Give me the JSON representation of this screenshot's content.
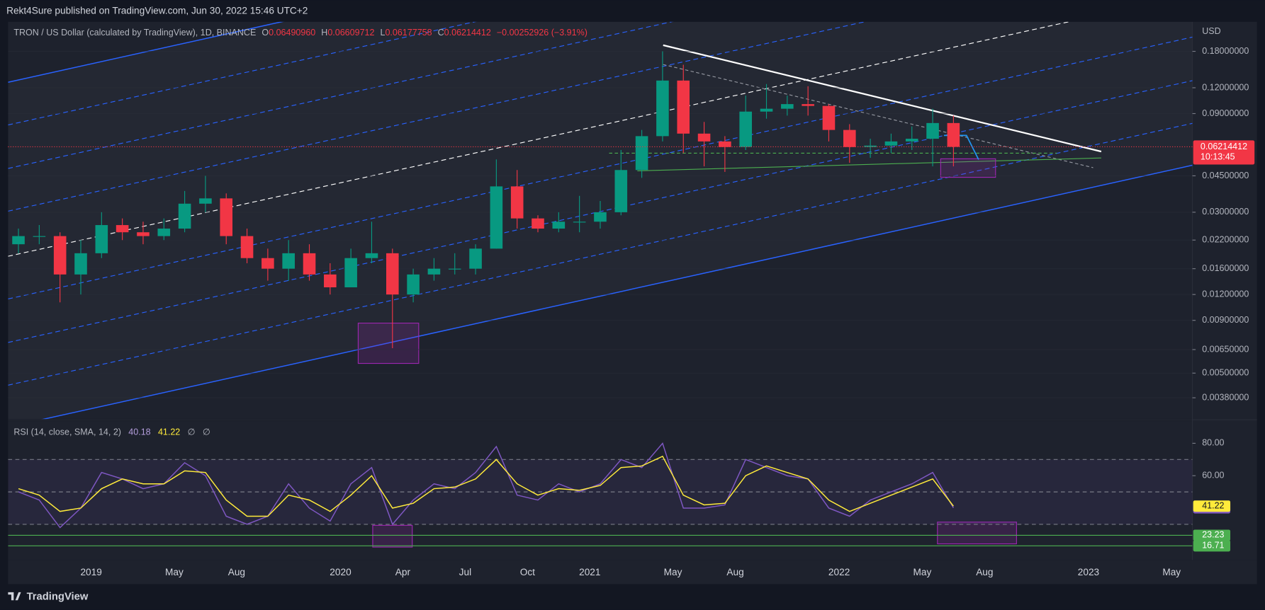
{
  "header": {
    "publisher": "Rekt4Sure published on TradingView.com, Jun 30, 2022 15:46 UTC+2"
  },
  "chart_data": [
    {
      "type": "candlestick",
      "title": "TRON / US Dollar (calculated by TradingView), 1D, BINANCE",
      "legend": [
        {
          "label": "O",
          "value": "0.06490960"
        },
        {
          "label": "H",
          "value": "0.06609712"
        },
        {
          "label": "L",
          "value": "0.06177758"
        },
        {
          "label": "C",
          "value": "0.06214412"
        }
      ],
      "change": "−0.00252926 (−3.91%)",
      "currency": "USD",
      "x": [
        "2018-09",
        "2018-10",
        "2018-11",
        "2018-12",
        "2019-01",
        "2019-02",
        "2019-03",
        "2019-04",
        "2019-05",
        "2019-06",
        "2019-07",
        "2019-08",
        "2019-09",
        "2019-10",
        "2019-11",
        "2019-12",
        "2020-01",
        "2020-02",
        "2020-03",
        "2020-04",
        "2020-05",
        "2020-06",
        "2020-07",
        "2020-08",
        "2020-09",
        "2020-10",
        "2020-11",
        "2020-12",
        "2021-01",
        "2021-02",
        "2021-03",
        "2021-04",
        "2021-05",
        "2021-06",
        "2021-07",
        "2021-08",
        "2021-09",
        "2021-10",
        "2021-11",
        "2021-12",
        "2022-01",
        "2022-02",
        "2022-03",
        "2022-04",
        "2022-05",
        "2022-06"
      ],
      "open": [
        0.021,
        0.023,
        0.023,
        0.015,
        0.019,
        0.026,
        0.024,
        0.023,
        0.025,
        0.033,
        0.035,
        0.023,
        0.018,
        0.016,
        0.019,
        0.015,
        0.013,
        0.018,
        0.019,
        0.012,
        0.015,
        0.016,
        0.016,
        0.02,
        0.04,
        0.028,
        0.025,
        0.027,
        0.027,
        0.03,
        0.048,
        0.07,
        0.13,
        0.072,
        0.066,
        0.062,
        0.092,
        0.095,
        0.1,
        0.098,
        0.075,
        0.062,
        0.063,
        0.066,
        0.068,
        0.081
      ],
      "high": [
        0.025,
        0.026,
        0.024,
        0.022,
        0.03,
        0.028,
        0.027,
        0.028,
        0.038,
        0.045,
        0.037,
        0.025,
        0.02,
        0.022,
        0.021,
        0.017,
        0.02,
        0.027,
        0.02,
        0.016,
        0.018,
        0.019,
        0.021,
        0.054,
        0.048,
        0.029,
        0.03,
        0.036,
        0.034,
        0.06,
        0.075,
        0.18,
        0.155,
        0.082,
        0.07,
        0.11,
        0.125,
        0.11,
        0.122,
        0.1,
        0.08,
        0.068,
        0.072,
        0.078,
        0.095,
        0.088
      ],
      "low": [
        0.019,
        0.021,
        0.011,
        0.012,
        0.018,
        0.022,
        0.021,
        0.022,
        0.024,
        0.03,
        0.021,
        0.017,
        0.014,
        0.014,
        0.014,
        0.012,
        0.013,
        0.017,
        0.0066,
        0.011,
        0.014,
        0.015,
        0.015,
        0.02,
        0.025,
        0.024,
        0.024,
        0.024,
        0.025,
        0.029,
        0.044,
        0.066,
        0.058,
        0.05,
        0.047,
        0.06,
        0.085,
        0.088,
        0.088,
        0.066,
        0.052,
        0.055,
        0.058,
        0.06,
        0.05,
        0.05
      ],
      "close": [
        0.023,
        0.023,
        0.015,
        0.019,
        0.026,
        0.024,
        0.023,
        0.025,
        0.033,
        0.035,
        0.023,
        0.018,
        0.016,
        0.019,
        0.015,
        0.013,
        0.018,
        0.019,
        0.012,
        0.015,
        0.016,
        0.016,
        0.02,
        0.04,
        0.028,
        0.025,
        0.027,
        0.027,
        0.03,
        0.048,
        0.07,
        0.13,
        0.072,
        0.066,
        0.062,
        0.092,
        0.095,
        0.1,
        0.098,
        0.075,
        0.062,
        0.063,
        0.066,
        0.068,
        0.081,
        0.06214412
      ],
      "up_color": "#089981",
      "down_color": "#f23645",
      "last_price_countdown": "10:13:45",
      "log_scale": true,
      "xlim": [
        "2018-09",
        "2023-06"
      ],
      "ylim": [
        0.003,
        0.25
      ],
      "yticks": [
        {
          "value": 0.18,
          "label": "0.18000000"
        },
        {
          "value": 0.12,
          "label": "0.12000000"
        },
        {
          "value": 0.09,
          "label": "0.09000000"
        },
        {
          "value": 0.045,
          "label": "0.04500000"
        },
        {
          "value": 0.03,
          "label": "0.03000000"
        },
        {
          "value": 0.022,
          "label": "0.02200000"
        },
        {
          "value": 0.016,
          "label": "0.01600000"
        },
        {
          "value": 0.012,
          "label": "0.01200000"
        },
        {
          "value": 0.009,
          "label": "0.00900000"
        },
        {
          "value": 0.0065,
          "label": "0.00650000"
        },
        {
          "value": 0.005,
          "label": "0.00500000"
        },
        {
          "value": 0.0038,
          "label": "0.00380000"
        }
      ],
      "xticks": [
        {
          "value": "2019-01",
          "label": "2019"
        },
        {
          "value": "2019-05",
          "label": "May"
        },
        {
          "value": "2019-08",
          "label": "Aug"
        },
        {
          "value": "2020-01",
          "label": "2020"
        },
        {
          "value": "2020-04",
          "label": "Apr"
        },
        {
          "value": "2020-07",
          "label": "Jul"
        },
        {
          "value": "2020-10",
          "label": "Oct"
        },
        {
          "value": "2021-01",
          "label": "2021"
        },
        {
          "value": "2021-05",
          "label": "May"
        },
        {
          "value": "2021-08",
          "label": "Aug"
        },
        {
          "value": "2022-01",
          "label": "2022"
        },
        {
          "value": "2022-05",
          "label": "May"
        },
        {
          "value": "2022-08",
          "label": "Aug"
        },
        {
          "value": "2023-01",
          "label": "2023"
        },
        {
          "value": "2023-05",
          "label": "May"
        }
      ]
    },
    {
      "type": "line",
      "title": "RSI (14, close, SMA, 14, 2)",
      "legend_extra": [
        "∅",
        "∅"
      ],
      "x": [
        "2018-09",
        "2018-10",
        "2018-11",
        "2018-12",
        "2019-01",
        "2019-02",
        "2019-03",
        "2019-04",
        "2019-05",
        "2019-06",
        "2019-07",
        "2019-08",
        "2019-09",
        "2019-10",
        "2019-11",
        "2019-12",
        "2020-01",
        "2020-02",
        "2020-03",
        "2020-04",
        "2020-05",
        "2020-06",
        "2020-07",
        "2020-08",
        "2020-09",
        "2020-10",
        "2020-11",
        "2020-12",
        "2021-01",
        "2021-02",
        "2021-03",
        "2021-04",
        "2021-05",
        "2021-06",
        "2021-07",
        "2021-08",
        "2021-09",
        "2021-10",
        "2021-11",
        "2021-12",
        "2022-01",
        "2022-02",
        "2022-03",
        "2022-04",
        "2022-05",
        "2022-06"
      ],
      "series": [
        {
          "color": "#7e57c2",
          "values": [
            50,
            45,
            28,
            40,
            62,
            58,
            52,
            55,
            68,
            60,
            35,
            30,
            35,
            55,
            40,
            32,
            55,
            65,
            30,
            45,
            55,
            52,
            62,
            78,
            48,
            45,
            55,
            50,
            55,
            70,
            65,
            80,
            40,
            40,
            42,
            70,
            65,
            60,
            58,
            40,
            35,
            45,
            50,
            55,
            62,
            40.18
          ]
        },
        {
          "color": "#ffeb3b",
          "values": [
            52,
            48,
            38,
            40,
            52,
            58,
            55,
            55,
            63,
            62,
            45,
            35,
            35,
            48,
            45,
            38,
            48,
            60,
            40,
            43,
            52,
            53,
            58,
            70,
            55,
            48,
            52,
            51,
            54,
            65,
            66,
            72,
            48,
            42,
            43,
            60,
            66,
            62,
            58,
            45,
            38,
            43,
            48,
            53,
            58,
            41.22
          ]
        }
      ],
      "xlim": [
        "2018-09",
        "2023-06"
      ],
      "ylim": [
        8,
        94
      ],
      "yticks": [
        {
          "value": 80,
          "label": "80.00"
        },
        {
          "value": 60,
          "label": "60.00"
        }
      ],
      "bands": [
        70,
        50,
        30
      ],
      "band_color": "#7e57c2",
      "levels": [
        23.23,
        16.71
      ],
      "level_color": "#4caf50"
    }
  ],
  "footer": {
    "brand": "TradingView"
  }
}
